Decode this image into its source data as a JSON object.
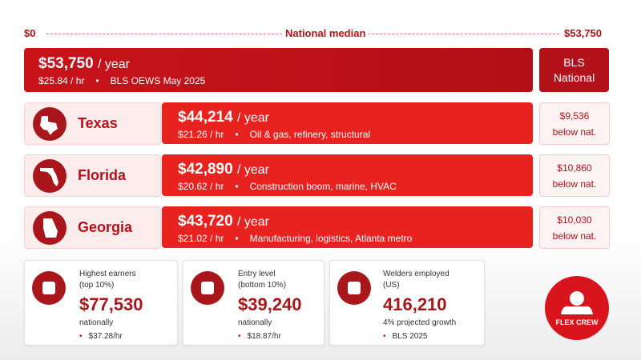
{
  "scale": {
    "min": "$0",
    "label": "National median",
    "max": "$53,750"
  },
  "national": {
    "annual": "$53,750",
    "unit": "/ year",
    "hourly": "$25.84 / hr",
    "source": "BLS OEWS May 2025",
    "badge": "BLS National"
  },
  "states": [
    {
      "name": "Texas",
      "annual": "$44,214",
      "unit": "/ year",
      "hourly": "$21.26 / hr",
      "note": "Oil & gas, refinery, structural",
      "diff": "$9,536",
      "diff_label": "below nat."
    },
    {
      "name": "Florida",
      "annual": "$42,890",
      "unit": "/ year",
      "hourly": "$20.62 / hr",
      "note": "Construction boom, marine, HVAC",
      "diff": "$10,860",
      "diff_label": "below nat."
    },
    {
      "name": "Georgia",
      "annual": "$43,720",
      "unit": "/ year",
      "hourly": "$21.02 / hr",
      "note": "Manufacturing, logistics, Atlanta metro",
      "diff": "$10,030",
      "diff_label": "below nat."
    }
  ],
  "stats": [
    {
      "label": "Highest earners",
      "sub": "(top 10%)",
      "value": "$77,530",
      "caption": "nationally",
      "detail": "$37.28/hr"
    },
    {
      "label": "Entry level",
      "sub": "(bottom 10%)",
      "value": "$39,240",
      "caption": "nationally",
      "detail": "$18.87/hr"
    },
    {
      "label": "Welders employed",
      "sub": "(US)",
      "value": "416,210",
      "caption": "4% projected growth",
      "detail": "BLS 2025"
    }
  ],
  "logo": "FLEX CREW"
}
